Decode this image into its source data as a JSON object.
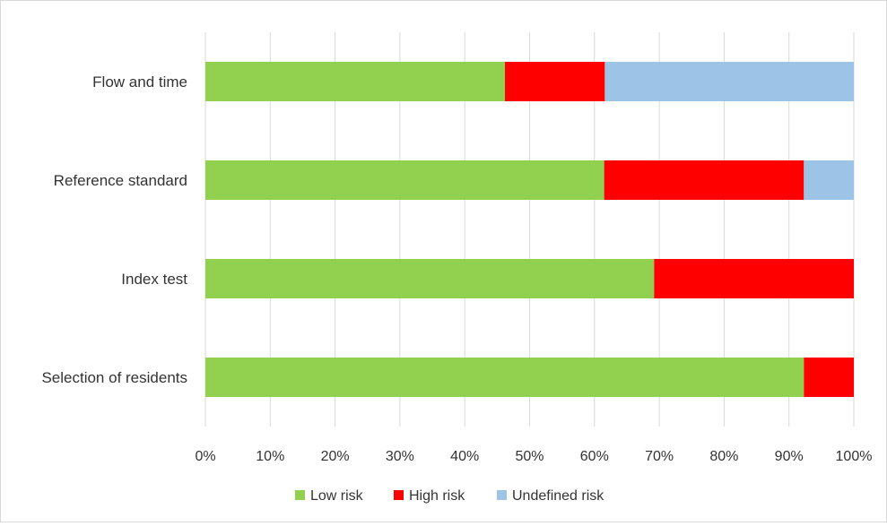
{
  "chart_data": {
    "type": "bar",
    "orientation": "horizontal",
    "stacked": "percent",
    "categories": [
      "Flow and time",
      "Reference standard",
      "Index test",
      "Selection of residents"
    ],
    "series": [
      {
        "name": "Low risk",
        "color": "#92d050",
        "values": [
          46.2,
          61.5,
          69.2,
          92.3
        ]
      },
      {
        "name": "High risk",
        "color": "#ff0000",
        "values": [
          15.4,
          30.8,
          30.8,
          7.7
        ]
      },
      {
        "name": "Undefined risk",
        "color": "#9dc3e6",
        "values": [
          38.4,
          7.7,
          0,
          0
        ]
      }
    ],
    "xlim": [
      0,
      100
    ],
    "x_ticks": [
      "0%",
      "10%",
      "20%",
      "30%",
      "40%",
      "50%",
      "60%",
      "70%",
      "80%",
      "90%",
      "100%"
    ],
    "grid": "vertical",
    "legend_position": "bottom"
  }
}
